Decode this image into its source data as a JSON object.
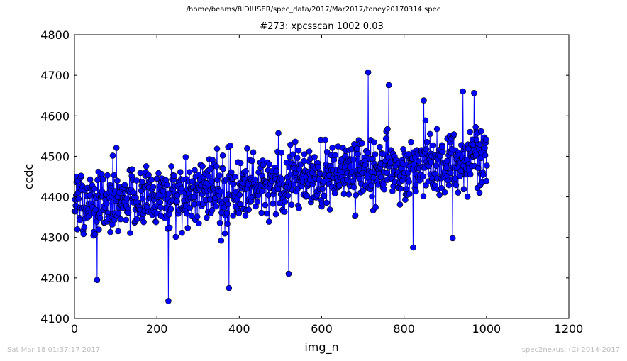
{
  "header": {
    "suptitle": "/home/beams/8IDIUSER/spec_data/2017/Mar2017/toney20170314.spec",
    "title": "#273: xpcsscan 1002 0.03"
  },
  "footer": {
    "timestamp": "Sat Mar 18 01:37:17 2017",
    "credit": "spec2nexus, (C) 2014-2017"
  },
  "chart_data": {
    "type": "line",
    "title": "#273: xpcsscan 1002 0.03",
    "xlabel": "img_n",
    "ylabel": "ccdc",
    "xlim": [
      0,
      1200
    ],
    "ylim": [
      4100,
      4800
    ],
    "xticks": [
      "0",
      "200",
      "400",
      "600",
      "800",
      "1000",
      "1200"
    ],
    "yticks": [
      "4100",
      "4200",
      "4300",
      "4400",
      "4500",
      "4600",
      "4700",
      "4800"
    ],
    "grid": false,
    "marker": "circle",
    "series": [
      {
        "color": "#0000ff",
        "marker_color": "#0000ff",
        "n_points": 1002,
        "trend_start": 4380,
        "trend_end": 4495,
        "highlights": [
          {
            "x": 228,
            "y": 4143
          },
          {
            "x": 713,
            "y": 4707
          },
          {
            "x": 763,
            "y": 4676
          },
          {
            "x": 102,
            "y": 4521
          },
          {
            "x": 373,
            "y": 4523
          },
          {
            "x": 495,
            "y": 4557
          },
          {
            "x": 943,
            "y": 4660
          },
          {
            "x": 970,
            "y": 4656
          },
          {
            "x": 848,
            "y": 4638
          },
          {
            "x": 55,
            "y": 4195
          },
          {
            "x": 375,
            "y": 4175
          },
          {
            "x": 520,
            "y": 4210
          },
          {
            "x": 822,
            "y": 4275
          },
          {
            "x": 918,
            "y": 4298
          }
        ]
      }
    ]
  }
}
